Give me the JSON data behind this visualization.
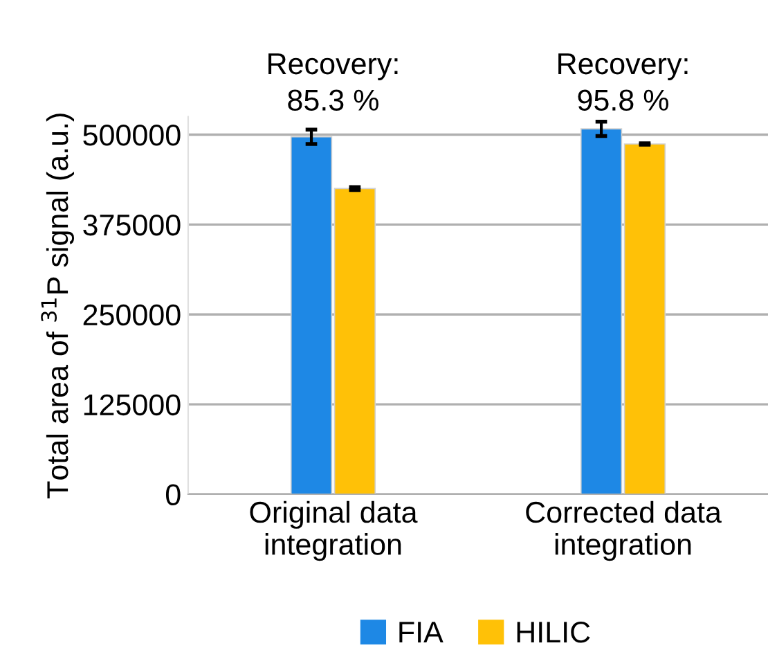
{
  "chart_data": {
    "type": "bar",
    "ylabel": "Total area of $^{31}$P signal (a.u.)",
    "categories": [
      "Original data\nintegration",
      "Corrected data\nintegration"
    ],
    "series": [
      {
        "name": "FIA",
        "color": "#1e88e5",
        "values": [
          497000,
          508000
        ],
        "errors": [
          10000,
          10000
        ]
      },
      {
        "name": "HILIC",
        "color": "#ffc107",
        "values": [
          425000,
          487000
        ],
        "errors": [
          2000,
          1000
        ]
      }
    ],
    "ylim": [
      0,
      525000
    ],
    "yticks": [
      0,
      125000,
      250000,
      375000,
      500000
    ],
    "grid": "y",
    "legend": "bottom",
    "annotations": [
      "Recovery:\n85.3 %",
      "Recovery:\n95.8 %"
    ]
  }
}
